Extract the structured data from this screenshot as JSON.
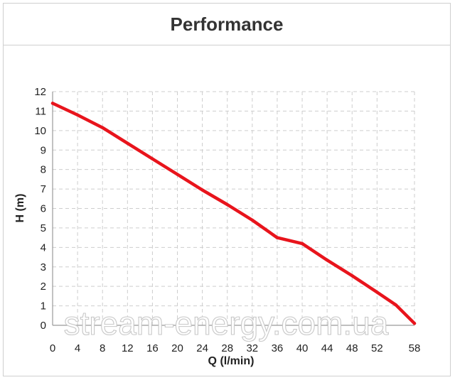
{
  "chart_data": {
    "type": "line",
    "title": "Performance",
    "xlabel": "Q (l/min)",
    "ylabel": "H (m)",
    "xlim": [
      0,
      58
    ],
    "ylim": [
      0,
      12
    ],
    "x_ticks": [
      0,
      4,
      8,
      12,
      16,
      20,
      24,
      28,
      32,
      36,
      40,
      44,
      48,
      52,
      58
    ],
    "y_ticks": [
      0,
      1,
      2,
      3,
      4,
      5,
      6,
      7,
      8,
      9,
      10,
      11,
      12
    ],
    "grid": true,
    "series": [
      {
        "color": "#e8141c",
        "x": [
          0,
          4,
          8,
          12,
          16,
          20,
          24,
          28,
          32,
          36,
          40,
          44,
          48,
          52,
          55,
          58
        ],
        "y": [
          11.4,
          10.8,
          10.15,
          9.35,
          8.55,
          7.75,
          6.95,
          6.2,
          5.4,
          4.5,
          4.2,
          3.35,
          2.55,
          1.7,
          1.05,
          0.1
        ]
      }
    ],
    "watermark": "stream-energy.com.ua"
  }
}
